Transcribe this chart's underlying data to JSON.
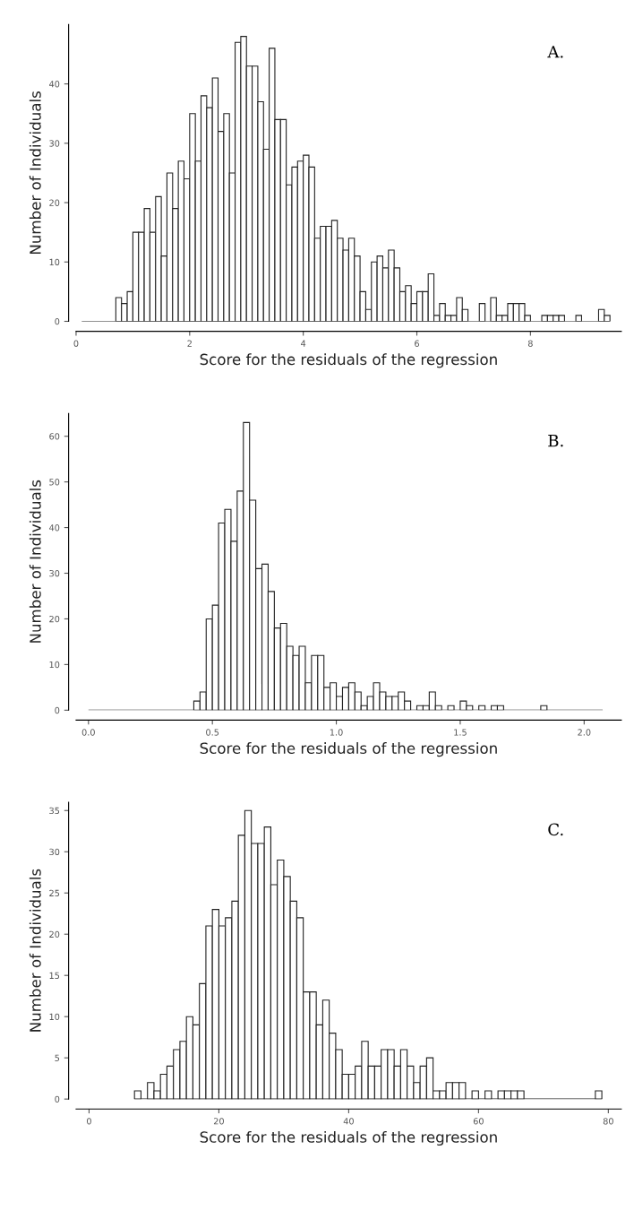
{
  "chart_data": [
    {
      "type": "histogram",
      "xlabel": "Score for the residuals of the regression",
      "ylabel": "Number of Individuals",
      "annotations": [
        "A."
      ],
      "color": "#ffffff",
      "bins": [
        0.1,
        0.2,
        0.3,
        0.4,
        0.5,
        0.6,
        0.7,
        0.8,
        0.9,
        1.0,
        1.1,
        1.2,
        1.3,
        1.4,
        1.5,
        1.6,
        1.7,
        1.8,
        1.9,
        2.0,
        2.1,
        2.2,
        2.3,
        2.4,
        2.5,
        2.6,
        2.7,
        2.8,
        2.9,
        3.0,
        3.1,
        3.2,
        3.3,
        3.4,
        3.5,
        3.6,
        3.7,
        3.8,
        3.9,
        4.0,
        4.1,
        4.2,
        4.3,
        4.4,
        4.5,
        4.6,
        4.7,
        4.8,
        4.9,
        5.0,
        5.1,
        5.2,
        5.3,
        5.4,
        5.5,
        5.6,
        5.7,
        5.8,
        5.9,
        6.0,
        6.1,
        6.2,
        6.3,
        6.4,
        6.5,
        6.6,
        6.7,
        6.8,
        6.9,
        7.0,
        7.1,
        7.2,
        7.3,
        7.4,
        7.5,
        7.6,
        7.7,
        7.8,
        7.9,
        8.0,
        8.1,
        8.2,
        8.3,
        8.4,
        8.5,
        8.6,
        8.7,
        8.8,
        8.9,
        9.0,
        9.1,
        9.2,
        9.3,
        9.4
      ],
      "values": [
        0,
        0,
        0,
        0,
        0,
        0,
        4,
        3,
        5,
        15,
        15,
        19,
        15,
        21,
        11,
        25,
        19,
        27,
        24,
        35,
        27,
        38,
        36,
        41,
        32,
        35,
        25,
        47,
        48,
        43,
        43,
        37,
        29,
        46,
        34,
        34,
        23,
        26,
        27,
        28,
        26,
        14,
        16,
        16,
        17,
        14,
        12,
        14,
        11,
        5,
        2,
        10,
        11,
        9,
        12,
        9,
        5,
        6,
        3,
        5,
        5,
        8,
        1,
        3,
        1,
        1,
        4,
        2,
        0,
        0,
        3,
        0,
        4,
        1,
        1,
        3,
        3,
        3,
        1,
        0,
        0,
        1,
        1,
        1,
        1,
        0,
        0,
        1,
        0,
        0,
        0,
        2,
        1
      ],
      "xlim": [
        0,
        9.6
      ],
      "ylim": [
        0,
        50
      ],
      "xticks": [
        0,
        2,
        4,
        6,
        8
      ],
      "yticks": [
        0,
        10,
        20,
        30,
        40
      ]
    },
    {
      "type": "histogram",
      "xlabel": "Score for the residuals of the regression",
      "ylabel": "Number of Individuals",
      "annotations": [
        "B."
      ],
      "color": "#ffffff",
      "bins": [
        0.0,
        0.025,
        0.05,
        0.075,
        0.1,
        0.125,
        0.15,
        0.175,
        0.2,
        0.225,
        0.25,
        0.275,
        0.3,
        0.325,
        0.35,
        0.375,
        0.4,
        0.425,
        0.45,
        0.475,
        0.5,
        0.525,
        0.55,
        0.575,
        0.6,
        0.625,
        0.65,
        0.675,
        0.7,
        0.725,
        0.75,
        0.775,
        0.8,
        0.825,
        0.85,
        0.875,
        0.9,
        0.925,
        0.95,
        0.975,
        1.0,
        1.025,
        1.05,
        1.075,
        1.1,
        1.125,
        1.15,
        1.175,
        1.2,
        1.225,
        1.25,
        1.275,
        1.3,
        1.325,
        1.35,
        1.375,
        1.4,
        1.425,
        1.45,
        1.475,
        1.5,
        1.525,
        1.55,
        1.575,
        1.6,
        1.625,
        1.65,
        1.675,
        1.7,
        1.725,
        1.75,
        1.775,
        1.8,
        1.825,
        1.85,
        1.875,
        1.9,
        1.925,
        1.95,
        1.975,
        2.0,
        2.025,
        2.05,
        2.075
      ],
      "values": [
        0,
        0,
        0,
        0,
        0,
        0,
        0,
        0,
        0,
        0,
        0,
        0,
        0,
        0,
        0,
        0,
        0,
        2,
        4,
        20,
        23,
        41,
        44,
        37,
        48,
        63,
        46,
        31,
        32,
        26,
        18,
        19,
        14,
        12,
        14,
        6,
        12,
        12,
        5,
        6,
        3,
        5,
        6,
        4,
        1,
        3,
        6,
        4,
        3,
        3,
        4,
        2,
        0,
        1,
        1,
        4,
        1,
        0,
        1,
        0,
        2,
        1,
        0,
        1,
        0,
        1,
        1,
        0,
        0,
        0,
        0,
        0,
        0,
        1,
        0,
        0,
        0,
        0,
        0,
        0,
        0,
        0,
        0
      ],
      "xlim": [
        -0.05,
        2.15
      ],
      "ylim": [
        0,
        65
      ],
      "xticks": [
        {
          "value": 0,
          "label": "0.0"
        },
        {
          "value": 0.5,
          "label": "0.5"
        },
        {
          "value": 1,
          "label": "1.0"
        },
        {
          "value": 1.5,
          "label": "1.5"
        },
        {
          "value": 2,
          "label": "2.0"
        }
      ],
      "yticks": [
        0,
        10,
        20,
        30,
        40,
        50,
        60
      ]
    },
    {
      "type": "histogram",
      "xlabel": "Score for the residuals of the regression",
      "ylabel": "Number of Individuals",
      "annotations": [
        "C."
      ],
      "color": "#ffffff",
      "bins": [
        7,
        8,
        9,
        10,
        11,
        12,
        13,
        14,
        15,
        16,
        17,
        18,
        19,
        20,
        21,
        22,
        23,
        24,
        25,
        26,
        27,
        28,
        29,
        30,
        31,
        32,
        33,
        34,
        35,
        36,
        37,
        38,
        39,
        40,
        41,
        42,
        43,
        44,
        45,
        46,
        47,
        48,
        49,
        50,
        51,
        52,
        53,
        54,
        55,
        56,
        57,
        58,
        59,
        60,
        61,
        62,
        63,
        64,
        65,
        66,
        67,
        68,
        69,
        70,
        71,
        72,
        73,
        74,
        75,
        76,
        77,
        78,
        79
      ],
      "values": [
        1,
        0,
        2,
        1,
        3,
        4,
        6,
        7,
        10,
        9,
        14,
        21,
        23,
        21,
        22,
        24,
        32,
        35,
        31,
        31,
        33,
        26,
        29,
        27,
        24,
        22,
        13,
        13,
        9,
        12,
        8,
        6,
        3,
        3,
        4,
        7,
        4,
        4,
        6,
        6,
        4,
        6,
        4,
        2,
        4,
        5,
        1,
        1,
        2,
        2,
        2,
        0,
        1,
        0,
        1,
        0,
        1,
        1,
        1,
        1,
        0,
        0,
        0,
        0,
        0,
        0,
        0,
        0,
        0,
        0,
        0,
        1
      ],
      "xlim": [
        -2,
        82
      ],
      "ylim": [
        0,
        36
      ],
      "xticks": [
        0,
        20,
        40,
        60,
        80
      ],
      "yticks": [
        0,
        5,
        10,
        15,
        20,
        25,
        30,
        35
      ]
    }
  ]
}
